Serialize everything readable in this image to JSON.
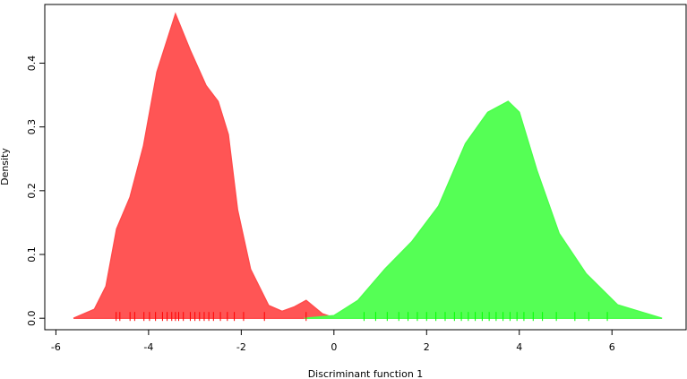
{
  "chart_data": {
    "type": "area",
    "xlabel": "Discriminant function 1",
    "ylabel": "Density",
    "xlim": [
      -6.24,
      7.6
    ],
    "ylim": [
      -0.018,
      0.492
    ],
    "xticks": [
      -6,
      -4,
      -2,
      0,
      2,
      4,
      6
    ],
    "yticks": [
      {
        "value": 0,
        "label": "0.0"
      },
      0.1,
      0.2,
      0.3,
      0.4
    ],
    "series": [
      {
        "color": "#ff4c4c",
        "x": [
          -5.62,
          -5.17,
          -4.92,
          -4.69,
          -4.4,
          -4.11,
          -3.82,
          -3.42,
          -3.1,
          -2.76,
          -2.5,
          -2.28,
          -2.08,
          -1.8,
          -1.41,
          -1.12,
          -0.85,
          -0.6,
          -0.25,
          0
        ],
        "values": [
          0,
          0.014,
          0.05,
          0.14,
          0.19,
          0.27,
          0.386,
          0.477,
          0.42,
          0.365,
          0.34,
          0.288,
          0.17,
          0.077,
          0.02,
          0.011,
          0.018,
          0.028,
          0.007,
          0.001
        ]
      },
      {
        "color": "#4cff4c",
        "x": [
          -0.64,
          0,
          0.52,
          1.1,
          1.68,
          2.26,
          2.84,
          3.32,
          3.76,
          4.0,
          4.38,
          4.86,
          5.44,
          6.12,
          7.08
        ],
        "values": [
          0,
          0.004,
          0.028,
          0.077,
          0.12,
          0.176,
          0.274,
          0.323,
          0.34,
          0.323,
          0.232,
          0.133,
          0.07,
          0.021,
          0
        ]
      }
    ],
    "rug": [
      {
        "color": "#ff0000",
        "x": [
          -4.7,
          -4.62,
          -4.4,
          -4.3,
          -4.1,
          -3.98,
          -3.85,
          -3.7,
          -3.6,
          -3.5,
          -3.42,
          -3.35,
          -3.25,
          -3.1,
          -3.0,
          -2.9,
          -2.8,
          -2.7,
          -2.6,
          -2.45,
          -2.3,
          -2.15,
          -1.95,
          -1.5,
          -0.6
        ]
      },
      {
        "color": "#00ff00",
        "x": [
          0.65,
          0.9,
          1.15,
          1.4,
          1.6,
          1.8,
          2.0,
          2.2,
          2.4,
          2.6,
          2.75,
          2.9,
          3.05,
          3.2,
          3.35,
          3.5,
          3.65,
          3.8,
          3.95,
          4.1,
          4.3,
          4.5,
          4.8,
          5.2,
          5.5,
          5.9
        ]
      }
    ]
  }
}
